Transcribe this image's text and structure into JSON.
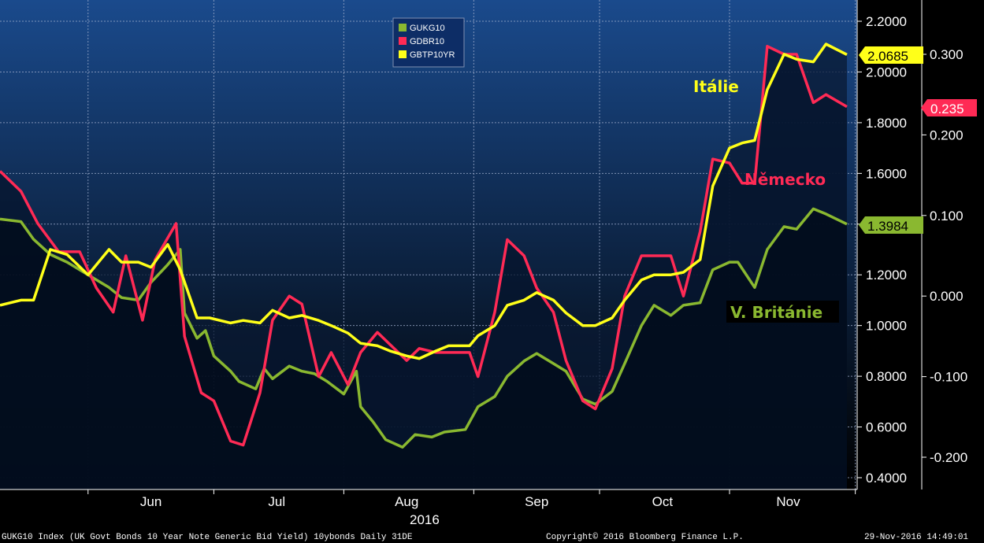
{
  "chart_data": {
    "type": "line",
    "x_start": "2016-05-11",
    "x_end": "2016-11-29",
    "year_label": "2016",
    "x_month_labels": [
      {
        "label": "Jun",
        "date": "2016-06-16"
      },
      {
        "label": "Jul",
        "date": "2016-07-16"
      },
      {
        "label": "Aug",
        "date": "2016-08-16"
      },
      {
        "label": "Sep",
        "date": "2016-09-16"
      },
      {
        "label": "Oct",
        "date": "2016-10-16"
      },
      {
        "label": "Nov",
        "date": "2016-11-15"
      }
    ],
    "x_month_boundaries": [
      "2016-06-01",
      "2016-07-01",
      "2016-08-01",
      "2016-09-01",
      "2016-10-01",
      "2016-11-01",
      "2016-12-01"
    ],
    "y_left": {
      "min": 0.4,
      "max": 2.2,
      "ticks": [
        "2.2000",
        "2.0000",
        "1.8000",
        "1.6000",
        "1.4000",
        "1.2000",
        "1.0000",
        "0.8000",
        "0.6000",
        "0.4000"
      ]
    },
    "y_right": {
      "min": -0.25,
      "max": 0.35,
      "ticks": [
        "0.300",
        "0.200",
        "0.100",
        "0.000",
        "-0.100",
        "-0.200"
      ]
    },
    "grid": true,
    "legend_position": "top-center",
    "series": [
      {
        "name": "GUKG10",
        "axis": "left",
        "color": "#8ab830",
        "last_label": "1.3984",
        "points": [
          [
            "2016-05-11",
            1.42
          ],
          [
            "2016-05-16",
            1.41
          ],
          [
            "2016-05-19",
            1.34
          ],
          [
            "2016-05-23",
            1.28
          ],
          [
            "2016-05-27",
            1.25
          ],
          [
            "2016-06-01",
            1.2
          ],
          [
            "2016-06-06",
            1.15
          ],
          [
            "2016-06-09",
            1.11
          ],
          [
            "2016-06-13",
            1.1
          ],
          [
            "2016-06-16",
            1.17
          ],
          [
            "2016-06-20",
            1.24
          ],
          [
            "2016-06-23",
            1.3
          ],
          [
            "2016-06-24",
            1.05
          ],
          [
            "2016-06-27",
            0.95
          ],
          [
            "2016-06-29",
            0.98
          ],
          [
            "2016-07-01",
            0.88
          ],
          [
            "2016-07-05",
            0.82
          ],
          [
            "2016-07-07",
            0.78
          ],
          [
            "2016-07-11",
            0.75
          ],
          [
            "2016-07-13",
            0.83
          ],
          [
            "2016-07-15",
            0.79
          ],
          [
            "2016-07-19",
            0.84
          ],
          [
            "2016-07-22",
            0.82
          ],
          [
            "2016-07-25",
            0.81
          ],
          [
            "2016-07-28",
            0.78
          ],
          [
            "2016-08-01",
            0.73
          ],
          [
            "2016-08-04",
            0.82
          ],
          [
            "2016-08-05",
            0.68
          ],
          [
            "2016-08-08",
            0.62
          ],
          [
            "2016-08-11",
            0.55
          ],
          [
            "2016-08-15",
            0.52
          ],
          [
            "2016-08-18",
            0.57
          ],
          [
            "2016-08-22",
            0.56
          ],
          [
            "2016-08-25",
            0.58
          ],
          [
            "2016-08-30",
            0.59
          ],
          [
            "2016-09-02",
            0.68
          ],
          [
            "2016-09-06",
            0.72
          ],
          [
            "2016-09-09",
            0.8
          ],
          [
            "2016-09-13",
            0.86
          ],
          [
            "2016-09-16",
            0.89
          ],
          [
            "2016-09-20",
            0.85
          ],
          [
            "2016-09-23",
            0.82
          ],
          [
            "2016-09-27",
            0.71
          ],
          [
            "2016-09-30",
            0.69
          ],
          [
            "2016-10-04",
            0.74
          ],
          [
            "2016-10-07",
            0.85
          ],
          [
            "2016-10-11",
            1.0
          ],
          [
            "2016-10-14",
            1.08
          ],
          [
            "2016-10-18",
            1.04
          ],
          [
            "2016-10-21",
            1.08
          ],
          [
            "2016-10-25",
            1.09
          ],
          [
            "2016-10-28",
            1.22
          ],
          [
            "2016-11-01",
            1.25
          ],
          [
            "2016-11-03",
            1.25
          ],
          [
            "2016-11-07",
            1.15
          ],
          [
            "2016-11-10",
            1.3
          ],
          [
            "2016-11-14",
            1.39
          ],
          [
            "2016-11-17",
            1.38
          ],
          [
            "2016-11-21",
            1.46
          ],
          [
            "2016-11-24",
            1.44
          ],
          [
            "2016-11-29",
            1.4
          ]
        ]
      },
      {
        "name": "GDBR10",
        "axis": "right",
        "color": "#ff2a55",
        "last_label": "0.235",
        "points": [
          [
            "2016-05-11",
            0.155
          ],
          [
            "2016-05-16",
            0.13
          ],
          [
            "2016-05-20",
            0.09
          ],
          [
            "2016-05-25",
            0.055
          ],
          [
            "2016-05-30",
            0.055
          ],
          [
            "2016-06-03",
            0.01
          ],
          [
            "2016-06-07",
            -0.02
          ],
          [
            "2016-06-10",
            0.05
          ],
          [
            "2016-06-14",
            -0.03
          ],
          [
            "2016-06-17",
            0.045
          ],
          [
            "2016-06-22",
            0.09
          ],
          [
            "2016-06-24",
            -0.05
          ],
          [
            "2016-06-28",
            -0.12
          ],
          [
            "2016-07-01",
            -0.13
          ],
          [
            "2016-07-05",
            -0.18
          ],
          [
            "2016-07-08",
            -0.185
          ],
          [
            "2016-07-12",
            -0.12
          ],
          [
            "2016-07-15",
            -0.03
          ],
          [
            "2016-07-19",
            0.0
          ],
          [
            "2016-07-22",
            -0.01
          ],
          [
            "2016-07-26",
            -0.1
          ],
          [
            "2016-07-29",
            -0.07
          ],
          [
            "2016-08-02",
            -0.11
          ],
          [
            "2016-08-05",
            -0.07
          ],
          [
            "2016-08-09",
            -0.045
          ],
          [
            "2016-08-12",
            -0.06
          ],
          [
            "2016-08-16",
            -0.08
          ],
          [
            "2016-08-19",
            -0.065
          ],
          [
            "2016-08-23",
            -0.07
          ],
          [
            "2016-08-26",
            -0.07
          ],
          [
            "2016-08-31",
            -0.07
          ],
          [
            "2016-09-02",
            -0.1
          ],
          [
            "2016-09-06",
            -0.02
          ],
          [
            "2016-09-09",
            0.07
          ],
          [
            "2016-09-13",
            0.05
          ],
          [
            "2016-09-16",
            0.01
          ],
          [
            "2016-09-20",
            -0.02
          ],
          [
            "2016-09-23",
            -0.08
          ],
          [
            "2016-09-27",
            -0.13
          ],
          [
            "2016-09-30",
            -0.14
          ],
          [
            "2016-10-04",
            -0.09
          ],
          [
            "2016-10-07",
            0.0
          ],
          [
            "2016-10-11",
            0.05
          ],
          [
            "2016-10-14",
            0.05
          ],
          [
            "2016-10-18",
            0.05
          ],
          [
            "2016-10-21",
            0.0
          ],
          [
            "2016-10-25",
            0.08
          ],
          [
            "2016-10-28",
            0.17
          ],
          [
            "2016-11-01",
            0.165
          ],
          [
            "2016-11-04",
            0.14
          ],
          [
            "2016-11-07",
            0.14
          ],
          [
            "2016-11-10",
            0.31
          ],
          [
            "2016-11-14",
            0.3
          ],
          [
            "2016-11-17",
            0.3
          ],
          [
            "2016-11-21",
            0.24
          ],
          [
            "2016-11-24",
            0.25
          ],
          [
            "2016-11-29",
            0.235
          ]
        ]
      },
      {
        "name": "GBTP10YR",
        "axis": "left",
        "color": "#ffff19",
        "last_label": "2.0685",
        "points": [
          [
            "2016-05-11",
            1.08
          ],
          [
            "2016-05-16",
            1.1
          ],
          [
            "2016-05-19",
            1.1
          ],
          [
            "2016-05-23",
            1.3
          ],
          [
            "2016-05-27",
            1.28
          ],
          [
            "2016-06-01",
            1.2
          ],
          [
            "2016-06-06",
            1.3
          ],
          [
            "2016-06-09",
            1.25
          ],
          [
            "2016-06-13",
            1.25
          ],
          [
            "2016-06-16",
            1.23
          ],
          [
            "2016-06-20",
            1.32
          ],
          [
            "2016-06-23",
            1.22
          ],
          [
            "2016-06-27",
            1.03
          ],
          [
            "2016-06-30",
            1.03
          ],
          [
            "2016-07-05",
            1.01
          ],
          [
            "2016-07-08",
            1.02
          ],
          [
            "2016-07-12",
            1.01
          ],
          [
            "2016-07-15",
            1.06
          ],
          [
            "2016-07-19",
            1.03
          ],
          [
            "2016-07-22",
            1.04
          ],
          [
            "2016-07-26",
            1.02
          ],
          [
            "2016-07-29",
            1.0
          ],
          [
            "2016-08-02",
            0.97
          ],
          [
            "2016-08-05",
            0.93
          ],
          [
            "2016-08-09",
            0.92
          ],
          [
            "2016-08-12",
            0.9
          ],
          [
            "2016-08-16",
            0.88
          ],
          [
            "2016-08-19",
            0.87
          ],
          [
            "2016-08-23",
            0.9
          ],
          [
            "2016-08-26",
            0.92
          ],
          [
            "2016-08-31",
            0.92
          ],
          [
            "2016-09-02",
            0.96
          ],
          [
            "2016-09-06",
            1.0
          ],
          [
            "2016-09-09",
            1.08
          ],
          [
            "2016-09-13",
            1.1
          ],
          [
            "2016-09-16",
            1.13
          ],
          [
            "2016-09-20",
            1.1
          ],
          [
            "2016-09-23",
            1.05
          ],
          [
            "2016-09-27",
            1.0
          ],
          [
            "2016-09-30",
            1.0
          ],
          [
            "2016-10-04",
            1.03
          ],
          [
            "2016-10-07",
            1.1
          ],
          [
            "2016-10-11",
            1.18
          ],
          [
            "2016-10-14",
            1.2
          ],
          [
            "2016-10-18",
            1.2
          ],
          [
            "2016-10-21",
            1.21
          ],
          [
            "2016-10-25",
            1.26
          ],
          [
            "2016-10-28",
            1.55
          ],
          [
            "2016-11-01",
            1.7
          ],
          [
            "2016-11-04",
            1.72
          ],
          [
            "2016-11-07",
            1.73
          ],
          [
            "2016-11-10",
            1.93
          ],
          [
            "2016-11-14",
            2.07
          ],
          [
            "2016-11-17",
            2.05
          ],
          [
            "2016-11-21",
            2.04
          ],
          [
            "2016-11-24",
            2.11
          ],
          [
            "2016-11-29",
            2.0685
          ]
        ]
      }
    ],
    "annotations": [
      {
        "text": "Itálie",
        "color": "#ffff19"
      },
      {
        "text": "Německo",
        "color": "#ff2a55"
      },
      {
        "text": "V. Británie",
        "color": "#8ab830"
      }
    ]
  },
  "footer": {
    "left": "GUKG10 Index (UK Govt Bonds 10 Year Note Generic Bid Yield) 10ybonds  Daily 31DE",
    "center": "Copyright© 2016 Bloomberg Finance L.P.",
    "right": "29-Nov-2016 14:49:01"
  }
}
